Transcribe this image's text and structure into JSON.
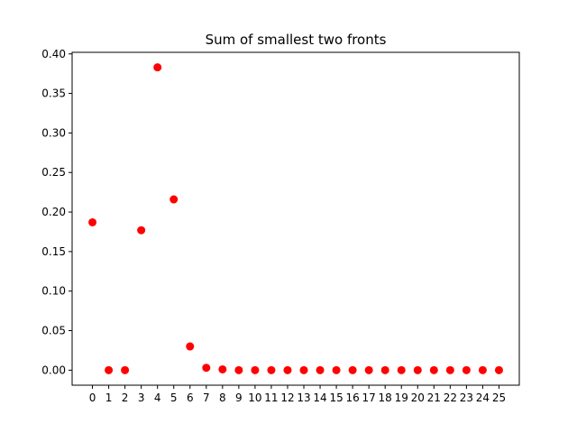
{
  "chart_data": {
    "type": "scatter",
    "title": "Sum of smallest two fronts",
    "xlabel": "",
    "ylabel": "",
    "x": [
      0,
      1,
      2,
      3,
      4,
      5,
      6,
      7,
      8,
      9,
      10,
      11,
      12,
      13,
      14,
      15,
      16,
      17,
      18,
      19,
      20,
      21,
      22,
      23,
      24,
      25
    ],
    "x_ticks": [
      "0",
      "1",
      "2",
      "3",
      "4",
      "5",
      "6",
      "7",
      "8",
      "9",
      "10",
      "11",
      "12",
      "13",
      "14",
      "15",
      "16",
      "17",
      "18",
      "19",
      "20",
      "21",
      "22",
      "23",
      "24",
      "25"
    ],
    "series": [
      {
        "values": [
          0.187,
          0.0,
          0.0,
          0.177,
          0.383,
          0.216,
          0.03,
          0.003,
          0.001,
          0.0,
          0.0,
          0.0,
          0.0,
          0.0,
          0.0,
          0.0,
          0.0,
          0.0,
          0.0,
          0.0,
          0.0,
          0.0,
          0.0,
          0.0,
          0.0,
          0.0
        ],
        "color": "#ff0000",
        "marker": "circle"
      }
    ],
    "y_ticks": [
      "0.00",
      "0.05",
      "0.10",
      "0.15",
      "0.20",
      "0.25",
      "0.30",
      "0.35",
      "0.40"
    ],
    "xlim": [
      -1.25,
      26.25
    ],
    "ylim": [
      -0.019,
      0.402
    ],
    "grid": false,
    "legend": "none"
  }
}
